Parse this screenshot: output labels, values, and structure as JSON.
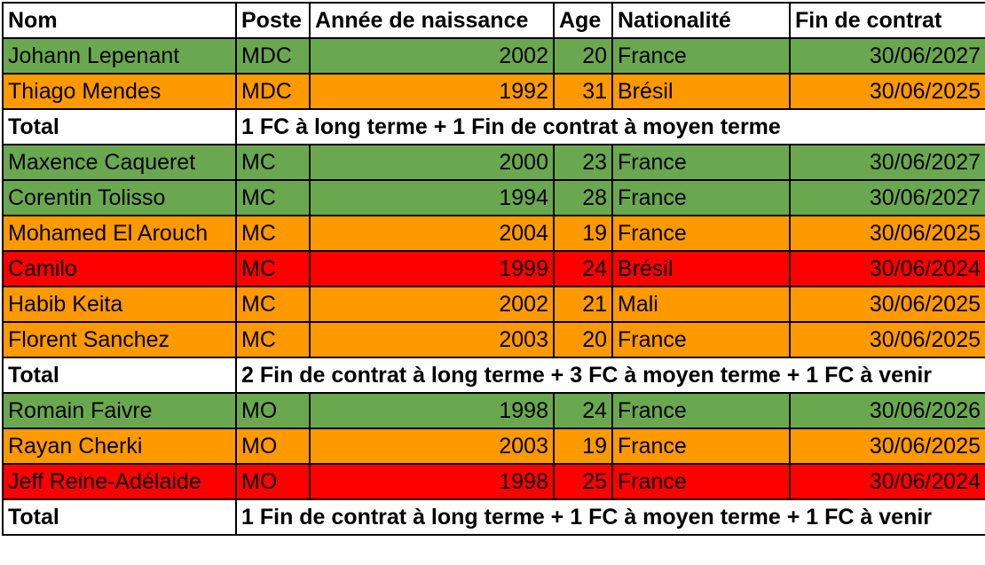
{
  "headers": {
    "nom": "Nom",
    "poste": "Poste",
    "annee": "Année de naissance",
    "age": "Age",
    "nationalite": "Nationalité",
    "fin": "Fin de contrat"
  },
  "colors": {
    "long_terme": "#6aa84f",
    "moyen_terme": "#ff9900",
    "fin_proche": "#ff0000"
  },
  "rows": [
    {
      "type": "player",
      "status": "long",
      "nom": "Johann Lepenant",
      "poste": "MDC",
      "annee": "2002",
      "age": "20",
      "nationalite": "France",
      "fin": "30/06/2027"
    },
    {
      "type": "player",
      "status": "mid",
      "nom": "Thiago Mendes",
      "poste": "MDC",
      "annee": "1992",
      "age": "31",
      "nationalite": "Brésil",
      "fin": "30/06/2025"
    },
    {
      "type": "total",
      "label": "Total",
      "text": "1 FC à long terme + 1 Fin de contrat à moyen terme"
    },
    {
      "type": "player",
      "status": "long",
      "nom": "Maxence Caqueret",
      "poste": "MC",
      "annee": "2000",
      "age": "23",
      "nationalite": "France",
      "fin": "30/06/2027"
    },
    {
      "type": "player",
      "status": "long",
      "nom": "Corentin Tolisso",
      "poste": "MC",
      "annee": "1994",
      "age": "28",
      "nationalite": "France",
      "fin": "30/06/2027"
    },
    {
      "type": "player",
      "status": "mid",
      "nom": "Mohamed El Arouch",
      "poste": "MC",
      "annee": "2004",
      "age": "19",
      "nationalite": "France",
      "fin": "30/06/2025"
    },
    {
      "type": "player",
      "status": "end",
      "nom": "Camilo",
      "poste": "MC",
      "annee": "1999",
      "age": "24",
      "nationalite": "Brésil",
      "fin": "30/06/2024"
    },
    {
      "type": "player",
      "status": "mid",
      "nom": "Habib Keita",
      "poste": "MC",
      "annee": "2002",
      "age": "21",
      "nationalite": "Mali",
      "fin": "30/06/2025"
    },
    {
      "type": "player",
      "status": "mid",
      "nom": "Florent Sanchez",
      "poste": "MC",
      "annee": "2003",
      "age": "20",
      "nationalite": "France",
      "fin": "30/06/2025"
    },
    {
      "type": "total",
      "label": "Total",
      "text": "2 Fin de contrat à long terme + 3 FC à moyen terme + 1 FC à venir"
    },
    {
      "type": "player",
      "status": "long",
      "nom": "Romain Faivre",
      "poste": "MO",
      "annee": "1998",
      "age": "24",
      "nationalite": "France",
      "fin": "30/06/2026"
    },
    {
      "type": "player",
      "status": "mid",
      "nom": "Rayan Cherki",
      "poste": "MO",
      "annee": "2003",
      "age": "19",
      "nationalite": "France",
      "fin": "30/06/2025"
    },
    {
      "type": "player",
      "status": "end",
      "nom": "Jeff Reine-Adélaide",
      "poste": "MO",
      "annee": "1998",
      "age": "25",
      "nationalite": "France",
      "fin": "30/06/2024"
    },
    {
      "type": "total",
      "label": "Total",
      "text": "1 Fin de contrat à long terme + 1 FC à moyen terme + 1 FC à venir"
    }
  ]
}
